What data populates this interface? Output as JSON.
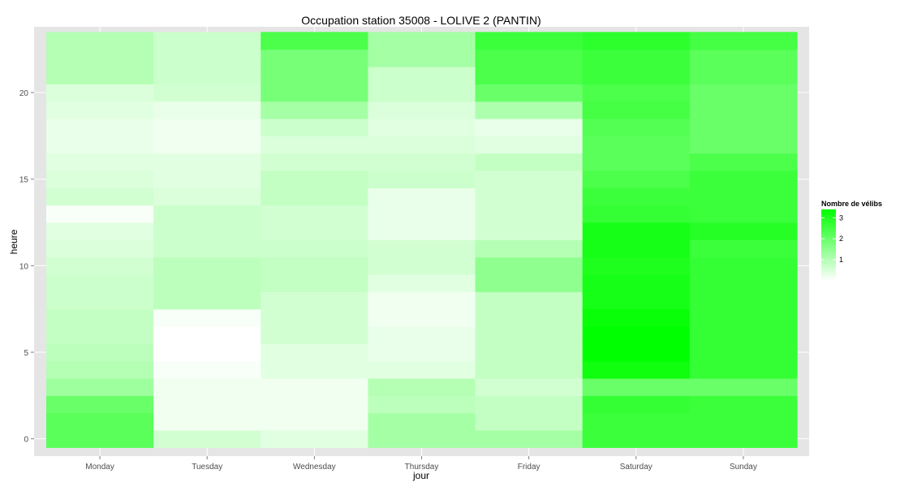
{
  "chart_data": {
    "type": "heatmap",
    "title": "Occupation station 35008 - LOLIVE 2 (PANTIN)",
    "xlabel": "jour",
    "ylabel": "heure",
    "x_categories": [
      "Monday",
      "Tuesday",
      "Wednesday",
      "Thursday",
      "Friday",
      "Saturday",
      "Sunday"
    ],
    "y_hours": [
      0,
      1,
      2,
      3,
      4,
      5,
      6,
      7,
      8,
      9,
      10,
      11,
      12,
      13,
      14,
      15,
      16,
      17,
      18,
      19,
      20,
      21,
      22,
      23
    ],
    "y_ticks": [
      0,
      5,
      10,
      15,
      20
    ],
    "y_range": [
      -1.0,
      23.8
    ],
    "legend": {
      "title": "Nombre de vélibs",
      "breaks": [
        1,
        2,
        3
      ],
      "range": [
        0,
        3.4
      ],
      "low_color": "#ffffff",
      "high_color": "#00ff00",
      "position": "right"
    },
    "values": {
      "Monday": [
        2.2,
        2.2,
        2.0,
        1.3,
        1.0,
        0.9,
        0.8,
        0.8,
        0.7,
        0.7,
        0.6,
        0.5,
        0.4,
        0.1,
        0.6,
        0.5,
        0.4,
        0.3,
        0.3,
        0.4,
        0.5,
        1.0,
        1.0,
        1.0
      ],
      "Tuesday": [
        0.6,
        0.2,
        0.2,
        0.2,
        0.1,
        0.0,
        0.0,
        0.1,
        0.9,
        0.9,
        0.9,
        0.7,
        0.7,
        0.7,
        0.5,
        0.4,
        0.4,
        0.2,
        0.2,
        0.3,
        0.6,
        0.7,
        0.7,
        0.7
      ],
      "Wednesday": [
        0.4,
        0.2,
        0.2,
        0.2,
        0.4,
        0.4,
        0.6,
        0.6,
        0.6,
        0.8,
        0.8,
        0.7,
        0.6,
        0.6,
        0.8,
        0.8,
        0.6,
        0.5,
        0.7,
        1.2,
        1.8,
        1.8,
        1.8,
        2.4
      ],
      "Thursday": [
        1.2,
        1.2,
        0.9,
        1.0,
        0.4,
        0.3,
        0.3,
        0.2,
        0.2,
        0.4,
        0.6,
        0.6,
        0.3,
        0.3,
        0.3,
        0.7,
        0.6,
        0.5,
        0.4,
        0.5,
        0.7,
        0.7,
        1.2,
        1.2
      ],
      "Friday": [
        1.2,
        0.8,
        0.8,
        0.6,
        0.8,
        0.8,
        0.8,
        0.8,
        0.8,
        1.5,
        1.5,
        1.0,
        0.6,
        0.6,
        0.6,
        0.6,
        0.8,
        0.4,
        0.3,
        1.1,
        2.0,
        2.4,
        2.4,
        2.6
      ],
      "Saturday": [
        2.6,
        2.6,
        2.7,
        2.0,
        3.2,
        3.4,
        3.4,
        3.3,
        3.1,
        3.1,
        3.0,
        3.1,
        3.1,
        2.7,
        2.6,
        2.4,
        2.2,
        2.2,
        2.3,
        2.5,
        2.4,
        2.6,
        2.6,
        2.8
      ],
      "Sunday": [
        2.6,
        2.6,
        2.6,
        2.0,
        2.7,
        2.7,
        2.7,
        2.7,
        2.7,
        2.7,
        2.7,
        2.6,
        2.9,
        2.6,
        2.6,
        2.6,
        2.4,
        2.0,
        2.0,
        2.0,
        2.0,
        2.2,
        2.2,
        2.5
      ]
    },
    "colors": {
      "panel_background": "#e5e5e5",
      "grid": "#ffffff",
      "text": "#000000",
      "tick_text": "#4d4d4d",
      "tick_mark": "#7f7f7f"
    }
  }
}
